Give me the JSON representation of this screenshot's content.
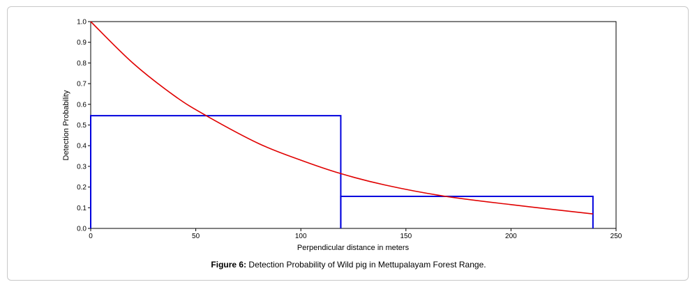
{
  "caption": {
    "label": "Figure 6:",
    "text": " Detection Probability of Wild pig in Mettupalayam Forest Range."
  },
  "chart_data": {
    "type": "line",
    "xlabel": "Perpendicular distance in meters",
    "ylabel": "Detection Probability",
    "xlim": [
      0,
      250
    ],
    "ylim": [
      0,
      1.0
    ],
    "x_ticks": [
      0,
      50,
      100,
      150,
      200,
      250
    ],
    "y_ticks": [
      "0.0",
      "0.1",
      "0.2",
      "0.3",
      "0.4",
      "0.5",
      "0.6",
      "0.7",
      "0.8",
      "0.9",
      "1.0"
    ],
    "grid": false,
    "series": [
      {
        "kind": "histogram",
        "color": "#0000dd",
        "bins": [
          {
            "x0": 0,
            "x1": 119,
            "value": 0.545
          },
          {
            "x0": 119,
            "x1": 239,
            "value": 0.155
          }
        ]
      },
      {
        "kind": "curve",
        "color": "#e00000",
        "x": [
          0,
          20,
          40,
          55,
          80,
          100,
          119,
          140,
          167,
          200,
          239
        ],
        "y": [
          1.0,
          0.8,
          0.64,
          0.545,
          0.41,
          0.33,
          0.265,
          0.21,
          0.158,
          0.115,
          0.07
        ]
      }
    ]
  }
}
